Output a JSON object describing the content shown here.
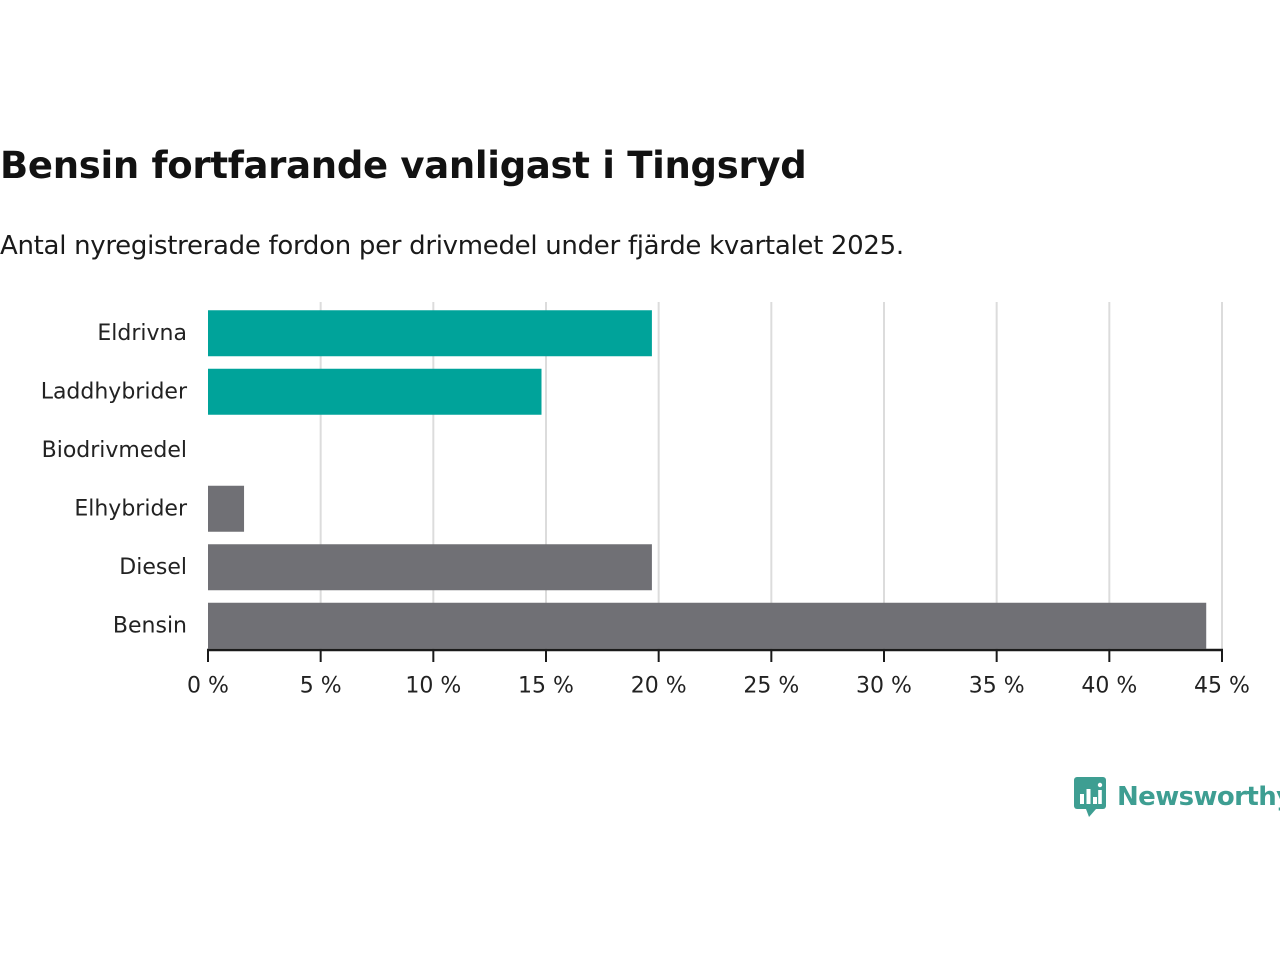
{
  "chart_data": {
    "type": "bar",
    "orientation": "horizontal",
    "title": "Bensin fortfarande vanligast i Tingsryd",
    "subtitle": "Antal nyregistrerade fordon per drivmedel under fjärde kvartalet 2025.",
    "categories": [
      "Eldrivna",
      "Laddhybrider",
      "Biodrivmedel",
      "Elhybrider",
      "Diesel",
      "Bensin"
    ],
    "values": [
      19.7,
      14.8,
      0,
      1.6,
      19.7,
      44.3
    ],
    "bar_colors": [
      "#00a39a",
      "#00a39a",
      "#707075",
      "#707075",
      "#707075",
      "#707075"
    ],
    "xlim": [
      0,
      45
    ],
    "xticks": [
      0,
      5,
      10,
      15,
      20,
      25,
      30,
      35,
      40,
      45
    ],
    "xtick_labels": [
      "0 %",
      "5 %",
      "10 %",
      "15 %",
      "20 %",
      "25 %",
      "30 %",
      "35 %",
      "40 %",
      "45 %"
    ],
    "xlabel": "",
    "ylabel": "",
    "grid": true
  },
  "brand": {
    "name": "Newsworthy",
    "color": "#3e9e92"
  }
}
